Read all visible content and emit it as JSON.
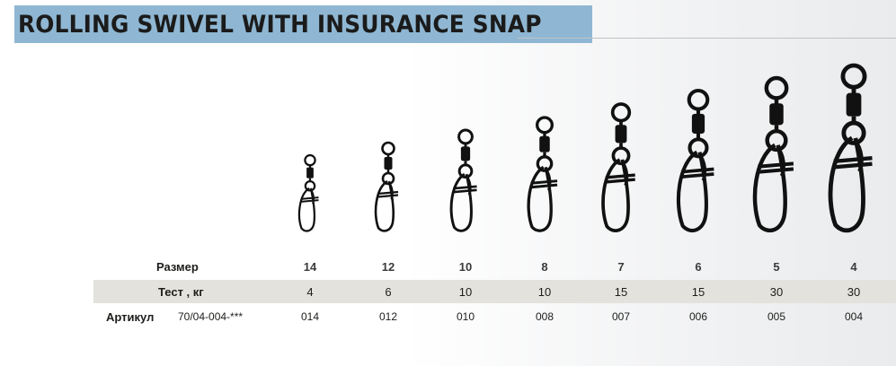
{
  "title": "ROLLING SWIVEL WITH INSURANCE SNAP",
  "table": {
    "size_label": "Размер",
    "test_label": "Тест , кг",
    "article_label": "Артикул",
    "article_code": "70/04-004-***",
    "sizes": [
      "14",
      "12",
      "10",
      "8",
      "7",
      "6",
      "5",
      "4"
    ],
    "tests": [
      "4",
      "6",
      "10",
      "10",
      "15",
      "15",
      "30",
      "30"
    ],
    "articles": [
      "014",
      "012",
      "010",
      "008",
      "007",
      "006",
      "005",
      "004"
    ]
  },
  "product_images": [
    {
      "size": "14",
      "icon": "rolling-swivel-snap-icon"
    },
    {
      "size": "12",
      "icon": "rolling-swivel-snap-icon"
    },
    {
      "size": "10",
      "icon": "rolling-swivel-snap-icon"
    },
    {
      "size": "8",
      "icon": "rolling-swivel-snap-icon"
    },
    {
      "size": "7",
      "icon": "rolling-swivel-snap-icon"
    },
    {
      "size": "6",
      "icon": "rolling-swivel-snap-icon"
    },
    {
      "size": "5",
      "icon": "rolling-swivel-snap-icon"
    },
    {
      "size": "4",
      "icon": "rolling-swivel-snap-icon"
    }
  ],
  "colors": {
    "title_background": "#8fb7d3",
    "shaded_row": "#e4e2dc",
    "text": "#1d1d1b"
  }
}
